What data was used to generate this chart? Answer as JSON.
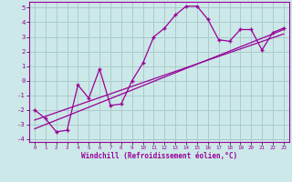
{
  "title": "",
  "xlabel": "Windchill (Refroidissement éolien,°C)",
  "ylabel": "",
  "bg_color": "#cce8e8",
  "grid_color": "#aacccc",
  "line_color": "#990099",
  "xlim": [
    -0.5,
    23.5
  ],
  "ylim": [
    -4.2,
    5.4
  ],
  "xticks": [
    0,
    1,
    2,
    3,
    4,
    5,
    6,
    7,
    8,
    9,
    10,
    11,
    12,
    13,
    14,
    15,
    16,
    17,
    18,
    19,
    20,
    21,
    22,
    23
  ],
  "yticks": [
    -4,
    -3,
    -2,
    -1,
    0,
    1,
    2,
    3,
    4,
    5
  ],
  "jagged_x": [
    0,
    1,
    2,
    3,
    4,
    5,
    6,
    7,
    8,
    9,
    10,
    11,
    12,
    13,
    14,
    15,
    16,
    17,
    18,
    19,
    20,
    21,
    22,
    23
  ],
  "jagged_y": [
    -2.0,
    -2.6,
    -3.5,
    -3.4,
    -0.3,
    -1.2,
    0.8,
    -1.7,
    -1.6,
    0.0,
    1.2,
    3.0,
    3.6,
    4.5,
    5.1,
    5.1,
    4.2,
    2.8,
    2.7,
    3.5,
    3.5,
    2.1,
    3.3,
    3.6
  ],
  "line1_x": [
    0,
    23
  ],
  "line1_y": [
    -3.3,
    3.5
  ],
  "line2_x": [
    0,
    23
  ],
  "line2_y": [
    -2.7,
    3.2
  ]
}
